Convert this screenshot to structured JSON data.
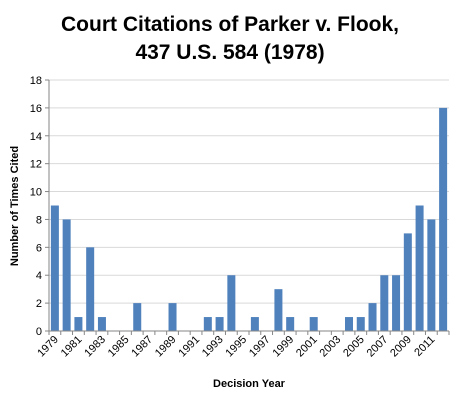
{
  "chart_data": {
    "type": "bar",
    "title": "Court Citations of Parker v. Flook,",
    "subtitle": "437 U.S. 584 (1978)",
    "xlabel": "Decision Year",
    "ylabel": "Number of Times Cited",
    "ylim": [
      0,
      18
    ],
    "ytick_step": 2,
    "grid": "horizontal",
    "legend": "none",
    "bar_color": "#4f81bd",
    "categories": [
      "1979",
      "1980",
      "1981",
      "1982",
      "1983",
      "1984",
      "1985",
      "1986",
      "1987",
      "1988",
      "1989",
      "1990",
      "1991",
      "1992",
      "1993",
      "1994",
      "1995",
      "1996",
      "1997",
      "1998",
      "1999",
      "2000",
      "2001",
      "2002",
      "2003",
      "2004",
      "2005",
      "2006",
      "2007",
      "2008",
      "2009",
      "2010",
      "2011",
      "2012"
    ],
    "values": [
      9,
      8,
      1,
      6,
      1,
      0,
      0,
      2,
      0,
      0,
      2,
      0,
      0,
      1,
      1,
      4,
      0,
      1,
      0,
      3,
      1,
      0,
      1,
      0,
      0,
      1,
      1,
      2,
      4,
      4,
      7,
      9,
      8,
      16
    ],
    "xtick_labels": [
      "1979",
      "1981",
      "1983",
      "1985",
      "1987",
      "1989",
      "1991",
      "1993",
      "1995",
      "1997",
      "1999",
      "2001",
      "2003",
      "2005",
      "2007",
      "2009",
      "2011"
    ]
  }
}
